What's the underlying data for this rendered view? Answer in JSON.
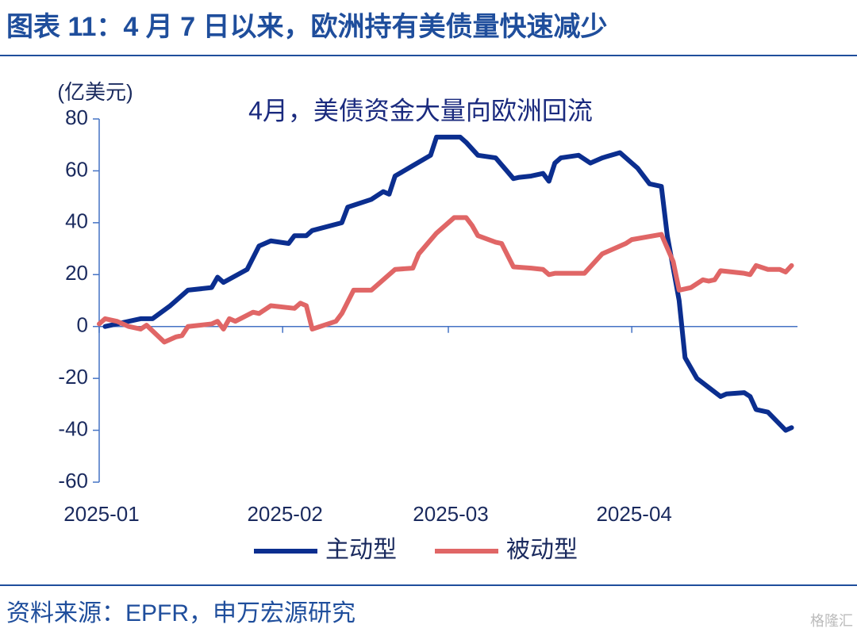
{
  "chart_data": {
    "type": "line",
    "title": "图表 11：4 月 7 日以来，欧洲持有美债量快速减少",
    "y_label": "(亿美元)",
    "annotation": "4月，美债资金大量向欧洲回流",
    "source": "资料来源：EPFR，申万宏源研究",
    "watermark": "格隆汇",
    "xlim": [
      0,
      118
    ],
    "xticks": [
      {
        "value": 0,
        "label": "2025-01"
      },
      {
        "value": 31,
        "label": "2025-02"
      },
      {
        "value": 59,
        "label": "2025-03"
      },
      {
        "value": 90,
        "label": "2025-04"
      }
    ],
    "ylim": [
      -60,
      80
    ],
    "yticks": [
      -60,
      -40,
      -20,
      0,
      20,
      40,
      60,
      80
    ],
    "series": [
      {
        "name": "主动型",
        "color": "#0b2e8f",
        "x": [
          1,
          5,
          7,
          9,
          12,
          13,
          15,
          19,
          20,
          21,
          25,
          27,
          29,
          32,
          33,
          35,
          36,
          41,
          42,
          46,
          48,
          49,
          50,
          53,
          56,
          57,
          61,
          62,
          64,
          67,
          70,
          71,
          73,
          75,
          76,
          77,
          78,
          81,
          83,
          85,
          88,
          90,
          91,
          93,
          95,
          96,
          98,
          99,
          101,
          105,
          106,
          109,
          110,
          111,
          113,
          116,
          117
        ],
        "values": [
          0,
          2,
          3,
          3,
          8,
          10,
          14,
          15,
          19,
          17,
          22,
          31,
          33,
          32,
          35,
          35,
          37,
          40,
          46,
          49,
          52,
          51,
          58,
          62,
          66,
          73,
          73,
          71,
          66,
          65,
          57,
          57.5,
          58,
          59,
          56,
          63,
          65,
          66,
          63,
          65,
          67,
          63,
          61,
          55,
          54,
          35,
          10,
          -12,
          -20,
          -27,
          -26,
          -25.5,
          -27,
          -32,
          -33,
          -40,
          -39
        ]
      },
      {
        "name": "被动型",
        "color": "#e06666",
        "x": [
          0,
          1,
          3,
          5,
          7,
          8,
          11,
          13,
          14,
          15,
          19,
          20,
          21,
          22,
          23,
          26,
          27,
          29,
          33,
          34,
          35,
          36,
          40,
          41,
          43,
          46,
          49,
          50,
          53,
          54,
          57,
          60,
          62,
          63,
          64,
          67,
          68,
          70,
          73,
          75,
          76,
          77,
          82,
          85,
          89,
          90,
          95,
          97,
          98,
          100,
          102,
          103,
          104,
          105,
          109,
          110,
          111,
          113,
          115,
          116,
          117
        ],
        "values": [
          1,
          3,
          2,
          0,
          -1,
          0.5,
          -6,
          -4,
          -3.5,
          0,
          1,
          2,
          -1,
          3,
          2,
          5.5,
          5,
          8,
          7,
          9,
          8,
          -1,
          2,
          5,
          14,
          14,
          20,
          22,
          22.5,
          28,
          36,
          42,
          42,
          39,
          35,
          32.5,
          32,
          23,
          22.5,
          22,
          20,
          20.5,
          20.5,
          28,
          32,
          33.5,
          35.5,
          25,
          14,
          15,
          18,
          17.5,
          18,
          21.5,
          20.5,
          20,
          23.5,
          22,
          22,
          21,
          23.5
        ]
      }
    ]
  }
}
